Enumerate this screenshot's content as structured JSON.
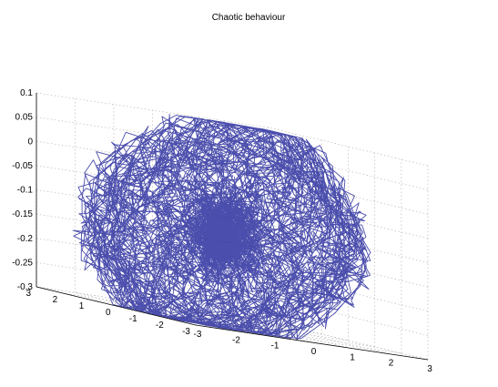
{
  "chart_data": {
    "type": "line",
    "subtype": "3d-line",
    "title": "Chaotic behaviour",
    "xlabel": "",
    "ylabel": "",
    "zlabel": "",
    "xlim": [
      -3,
      3
    ],
    "ylim": [
      -3,
      3
    ],
    "zlim": [
      -0.3,
      0.1
    ],
    "x_ticks": [
      "-3",
      "-2",
      "-1",
      "0",
      "1",
      "2",
      "3"
    ],
    "y_ticks": [
      "-3",
      "-2",
      "-1",
      "0",
      "1",
      "2",
      "3"
    ],
    "z_ticks": [
      "-0.3",
      "-0.25",
      "-0.2",
      "-0.15",
      "-0.1",
      "-0.05",
      "0",
      "0.05",
      "0.1"
    ],
    "grid": true,
    "box": true,
    "series": [
      {
        "color": "#2b2f9e",
        "description_values": {
          "x_range": [
            -2.8,
            2.2
          ],
          "y_range": [
            -2.6,
            2.4
          ],
          "z_range": [
            -0.3,
            0.1
          ]
        }
      }
    ]
  }
}
